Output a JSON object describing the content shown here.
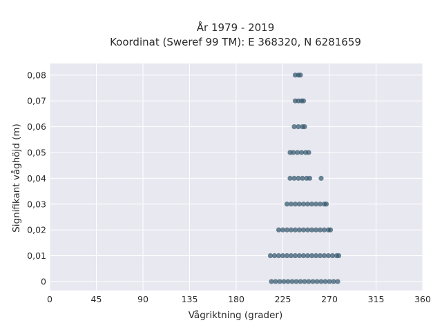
{
  "chart_data": {
    "type": "scatter",
    "title": "År 1979 - 2019",
    "subtitle": "Koordinat (Sweref 99 TM): E 368320, N 6281659",
    "xlabel": "Vågriktning (grader)",
    "ylabel": "Signifikant våghöjd (m)",
    "xlim": [
      0,
      360
    ],
    "ylim": [
      -0.0035,
      0.0845
    ],
    "x_ticks": [
      0,
      45,
      90,
      135,
      180,
      225,
      270,
      315,
      360
    ],
    "x_tick_labels": [
      "0",
      "45",
      "90",
      "135",
      "180",
      "225",
      "270",
      "315",
      "360"
    ],
    "y_ticks": [
      0,
      0.01,
      0.02,
      0.03,
      0.04,
      0.05,
      0.06,
      0.07,
      0.08
    ],
    "y_tick_labels": [
      "0",
      "0,01",
      "0,02",
      "0,03",
      "0,04",
      "0,05",
      "0,06",
      "0,07",
      "0,08"
    ],
    "grid": true,
    "background": "#e8e8f0",
    "grid_color": "#ffffff",
    "marker_color": "#34576e",
    "series": [
      {
        "x": [
          214,
          218,
          222,
          226,
          230,
          234,
          238,
          242,
          246,
          250,
          254,
          258,
          262,
          266,
          270,
          274,
          278,
          213,
          217,
          221,
          225,
          229,
          233,
          237,
          241,
          245,
          249,
          253,
          257,
          261,
          265,
          269,
          273,
          277,
          279,
          221,
          225,
          229,
          233,
          237,
          241,
          245,
          249,
          253,
          257,
          261,
          265,
          269,
          271,
          229,
          233,
          237,
          241,
          245,
          249,
          253,
          257,
          261,
          265,
          267,
          232,
          236,
          240,
          244,
          248,
          251,
          262,
          232,
          235,
          239,
          243,
          247,
          250,
          236,
          240,
          244,
          246,
          237,
          240,
          243,
          245,
          237,
          240,
          242
        ],
        "y": [
          0,
          0,
          0,
          0,
          0,
          0,
          0,
          0,
          0,
          0,
          0,
          0,
          0,
          0,
          0,
          0,
          0,
          0.01,
          0.01,
          0.01,
          0.01,
          0.01,
          0.01,
          0.01,
          0.01,
          0.01,
          0.01,
          0.01,
          0.01,
          0.01,
          0.01,
          0.01,
          0.01,
          0.01,
          0.01,
          0.02,
          0.02,
          0.02,
          0.02,
          0.02,
          0.02,
          0.02,
          0.02,
          0.02,
          0.02,
          0.02,
          0.02,
          0.02,
          0.02,
          0.03,
          0.03,
          0.03,
          0.03,
          0.03,
          0.03,
          0.03,
          0.03,
          0.03,
          0.03,
          0.03,
          0.04,
          0.04,
          0.04,
          0.04,
          0.04,
          0.04,
          0.04,
          0.05,
          0.05,
          0.05,
          0.05,
          0.05,
          0.05,
          0.06,
          0.06,
          0.06,
          0.06,
          0.07,
          0.07,
          0.07,
          0.07,
          0.08,
          0.08,
          0.08
        ]
      }
    ]
  }
}
